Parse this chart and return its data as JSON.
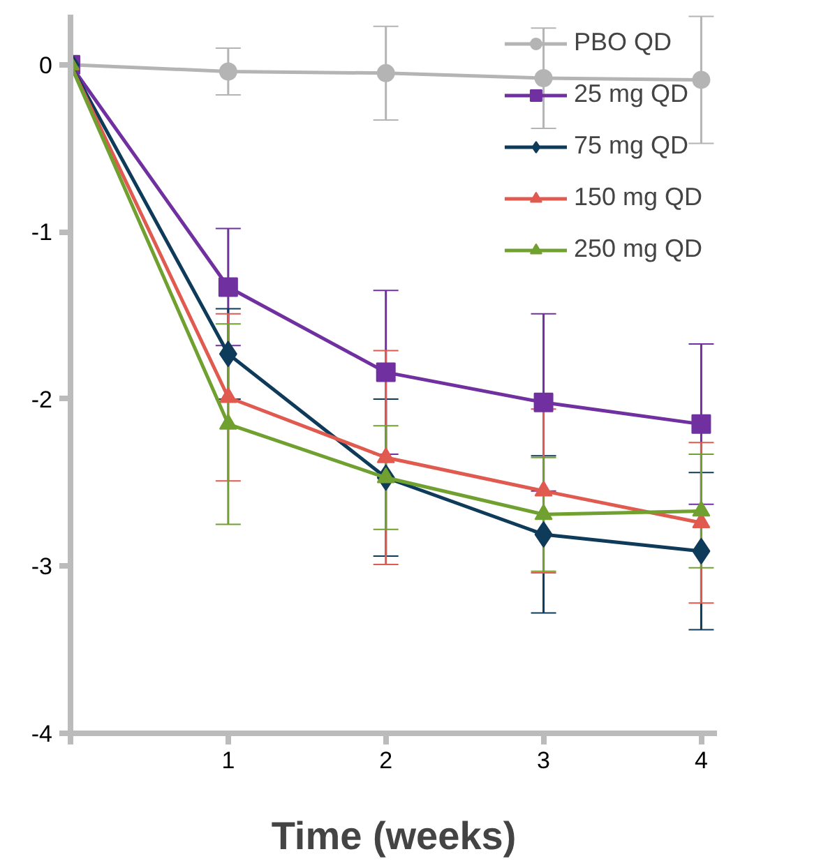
{
  "chart_data": {
    "type": "line",
    "xlabel": "Time (weeks)",
    "x": [
      0,
      1,
      2,
      3,
      4
    ],
    "xlim": [
      0,
      4.1
    ],
    "xticks": [
      {
        "value": 0,
        "label": null
      },
      1,
      2,
      3,
      4
    ],
    "ylim": [
      -4,
      0.3
    ],
    "yticks": [
      0,
      -1,
      -2,
      -3,
      -4
    ],
    "grid": false,
    "legend": "top right",
    "series": [
      {
        "name": "PBO QD",
        "color": "#b4b4b4",
        "marker": "circle",
        "values": [
          0,
          -0.04,
          -0.05,
          -0.08,
          -0.09
        ],
        "errors": [
          null,
          0.14,
          0.28,
          0.3,
          0.38
        ]
      },
      {
        "name": "25 mg QD",
        "color": "#7030a0",
        "marker": "square",
        "values": [
          0,
          -1.33,
          -1.84,
          -2.02,
          -2.15
        ],
        "errors": [
          null,
          0.35,
          0.49,
          0.53,
          0.48
        ]
      },
      {
        "name": "75 mg QD",
        "color": "#0e3b5a",
        "marker": "diamond",
        "values": [
          0,
          -1.73,
          -2.47,
          -2.81,
          -2.91
        ],
        "errors": [
          null,
          0.27,
          0.47,
          0.47,
          0.47
        ]
      },
      {
        "name": "150 mg QD",
        "color": "#e05a50",
        "marker": "triangle",
        "values": [
          0,
          -1.99,
          -2.35,
          -2.55,
          -2.74
        ],
        "errors": [
          null,
          0.5,
          0.64,
          0.49,
          0.48
        ]
      },
      {
        "name": "250 mg QD",
        "color": "#70a030",
        "marker": "triangle",
        "values": [
          0,
          -2.15,
          -2.47,
          -2.69,
          -2.67
        ],
        "errors": [
          null,
          0.6,
          0.31,
          0.34,
          0.34
        ]
      }
    ]
  }
}
